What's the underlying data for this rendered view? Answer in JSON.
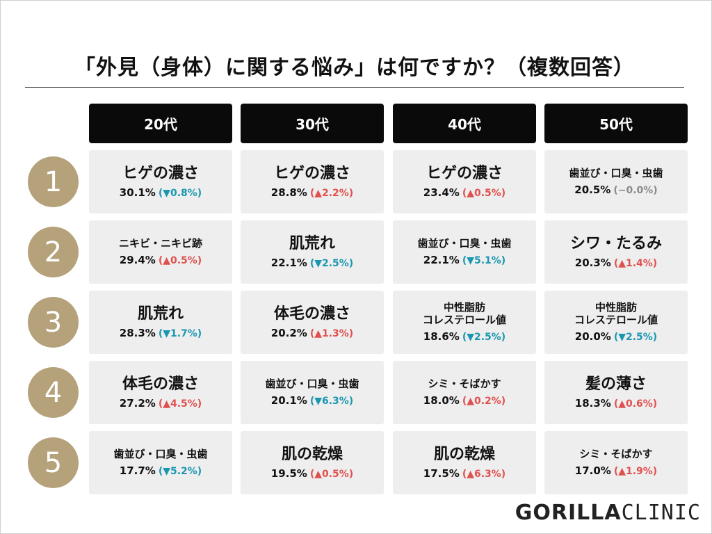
{
  "title": "「外見（身体）に関する悩み」は何ですか？（複数回答）",
  "headers": [
    "20代",
    "30代",
    "40代",
    "50代"
  ],
  "ranks": [
    "1",
    "2",
    "3",
    "4",
    "5"
  ],
  "rows": [
    [
      {
        "name": "ヒゲの濃さ",
        "pct": "30.1%",
        "change": "(▼0.8%)",
        "dir": "down"
      },
      {
        "name": "ヒゲの濃さ",
        "pct": "28.8%",
        "change": "(▲2.2%)",
        "dir": "up"
      },
      {
        "name": "ヒゲの濃さ",
        "pct": "23.4%",
        "change": "(▲0.5%)",
        "dir": "up"
      },
      {
        "name": "歯並び・口臭・虫歯",
        "pct": "20.5%",
        "change": "(−0.0%)",
        "dir": "flat"
      }
    ],
    [
      {
        "name": "ニキビ・ニキビ跡",
        "pct": "29.4%",
        "change": "(▲0.5%)",
        "dir": "up"
      },
      {
        "name": "肌荒れ",
        "pct": "22.1%",
        "change": "(▼2.5%)",
        "dir": "down"
      },
      {
        "name": "歯並び・口臭・虫歯",
        "pct": "22.1%",
        "change": "(▼5.1%)",
        "dir": "down"
      },
      {
        "name": "シワ・たるみ",
        "pct": "20.3%",
        "change": "(▲1.4%)",
        "dir": "up"
      }
    ],
    [
      {
        "name": "肌荒れ",
        "pct": "28.3%",
        "change": "(▼1.7%)",
        "dir": "down"
      },
      {
        "name": "体毛の濃さ",
        "pct": "20.2%",
        "change": "(▲1.3%)",
        "dir": "up"
      },
      {
        "name": "中性脂肪\nコレステロール値",
        "pct": "18.6%",
        "change": "(▼2.5%)",
        "dir": "down"
      },
      {
        "name": "中性脂肪\nコレステロール値",
        "pct": "20.0%",
        "change": "(▼2.5%)",
        "dir": "down"
      }
    ],
    [
      {
        "name": "体毛の濃さ",
        "pct": "27.2%",
        "change": "(▲4.5%)",
        "dir": "up"
      },
      {
        "name": "歯並び・口臭・虫歯",
        "pct": "20.1%",
        "change": "(▼6.3%)",
        "dir": "down"
      },
      {
        "name": "シミ・そばかす",
        "pct": "18.0%",
        "change": "(▲0.2%)",
        "dir": "up"
      },
      {
        "name": "髪の薄さ",
        "pct": "18.3%",
        "change": "(▲0.6%)",
        "dir": "up"
      }
    ],
    [
      {
        "name": "歯並び・口臭・虫歯",
        "pct": "17.7%",
        "change": "(▼5.2%)",
        "dir": "down"
      },
      {
        "name": "肌の乾燥",
        "pct": "19.5%",
        "change": "(▲0.5%)",
        "dir": "up"
      },
      {
        "name": "肌の乾燥",
        "pct": "17.5%",
        "change": "(▲6.3%)",
        "dir": "up"
      },
      {
        "name": "シミ・そばかす",
        "pct": "17.0%",
        "change": "(▲1.9%)",
        "dir": "up"
      }
    ]
  ],
  "logo": {
    "bold": "GORILLA",
    "light": "CLINIC"
  },
  "colors": {
    "rank_circle": "#b5a27b",
    "header_bg": "#0a0a0a",
    "cell_bg": "#eeeeee",
    "up": "#e0504e",
    "down": "#1a97b0",
    "flat": "#8a8a8a"
  }
}
